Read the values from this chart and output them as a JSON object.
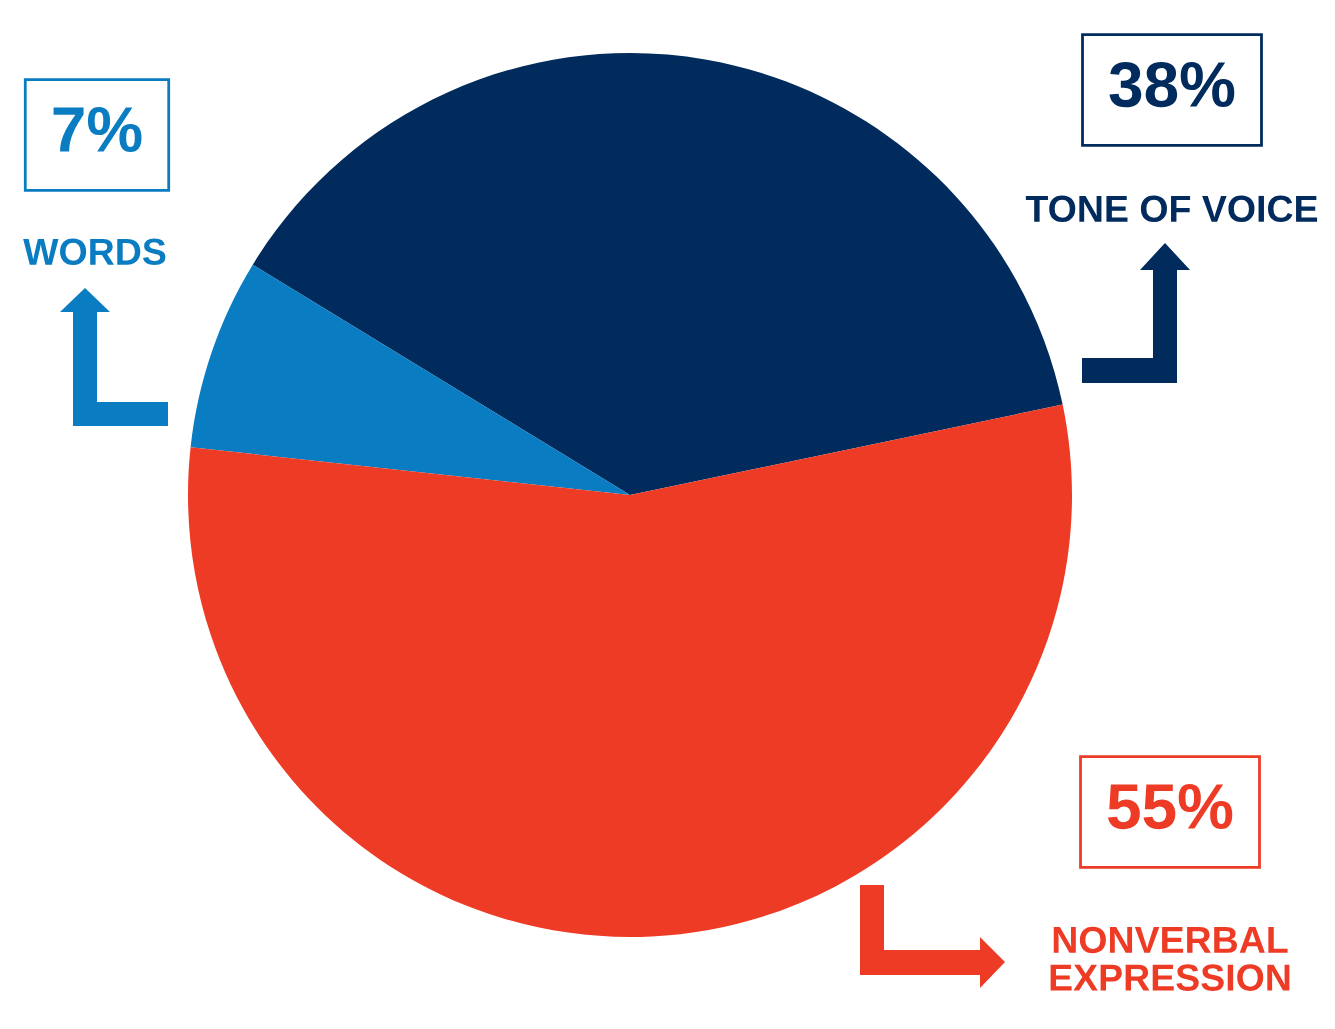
{
  "chart_data": {
    "type": "pie",
    "categories": [
      "TONE OF VOICE",
      "WORDS",
      "NONVERBAL\nEXPRESSION"
    ],
    "values": [
      38,
      7,
      55
    ],
    "colors": [
      "#002b5c",
      "#0a7cc2",
      "#ee3b25"
    ],
    "value_labels": [
      "38%",
      "7%",
      "55%"
    ]
  }
}
